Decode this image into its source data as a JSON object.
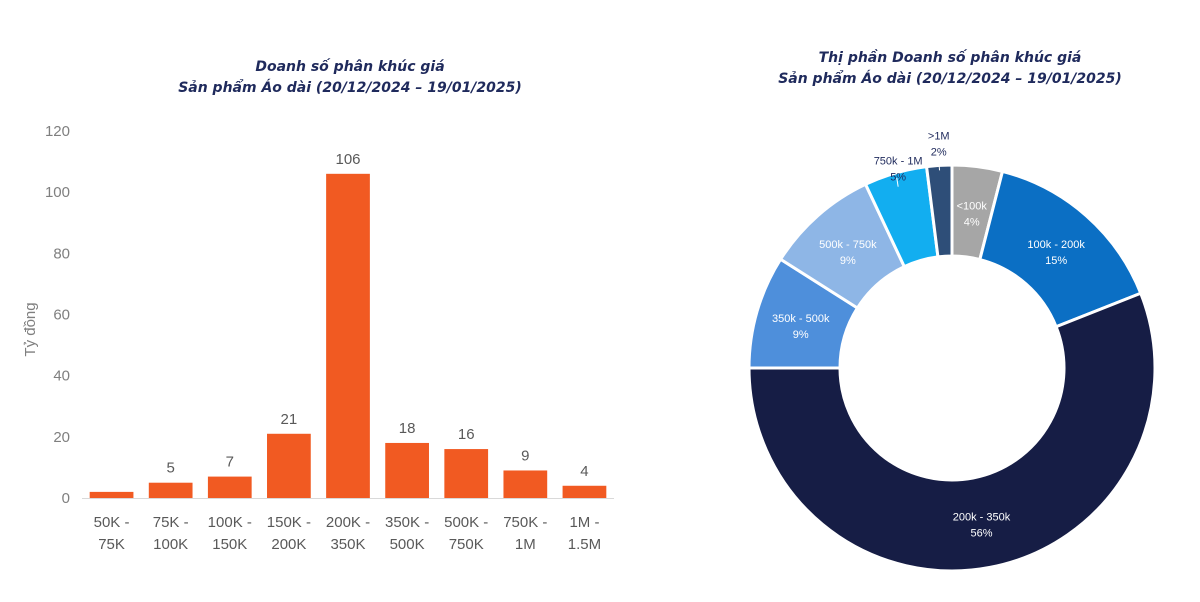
{
  "chart_data": [
    {
      "type": "bar",
      "title": "Doanh số phân khúc giá",
      "subtitle": "Sản phẩm Áo dài (20/12/2024 – 19/01/2025)",
      "ylabel": "Tỷ đồng",
      "xlabel": "",
      "ylim": [
        0,
        120
      ],
      "yticks": [
        0,
        20,
        40,
        60,
        80,
        100,
        120
      ],
      "categories": [
        [
          "50K -",
          "75K"
        ],
        [
          "75K -",
          "100K"
        ],
        [
          "100K -",
          "150K"
        ],
        [
          "150K -",
          "200K"
        ],
        [
          "200K -",
          "350K"
        ],
        [
          "350K -",
          "500K"
        ],
        [
          "500K -",
          "750K"
        ],
        [
          "750K -",
          "1M"
        ],
        [
          "1M -",
          "1.5M"
        ]
      ],
      "values": [
        2,
        5,
        7,
        21,
        106,
        18,
        16,
        9,
        4
      ],
      "data_labels": [
        "",
        "5",
        "7",
        "21",
        "106",
        "18",
        "16",
        "9",
        "4"
      ],
      "bar_color": "#f15a22",
      "grid": false,
      "legend": "none"
    },
    {
      "type": "pie",
      "style": "donut",
      "title": "Thị phần Doanh số phân khúc giá",
      "subtitle": "Sản phẩm Áo dài (20/12/2024 – 19/01/2025)",
      "slices": [
        {
          "label": "<100k",
          "value": 4,
          "pct_label": "4%",
          "color": "#a6a6a6",
          "text_color": "#ffffff"
        },
        {
          "label": "100k - 200k",
          "value": 15,
          "pct_label": "15%",
          "color": "#0b6fc4",
          "text_color": "#ffffff"
        },
        {
          "label": "200k - 350k",
          "value": 56,
          "pct_label": "56%",
          "color": "#161d45",
          "text_color": "#ffffff"
        },
        {
          "label": "350k - 500k",
          "value": 9,
          "pct_label": "9%",
          "color": "#4e8fdb",
          "text_color": "#ffffff"
        },
        {
          "label": "500k - 750k",
          "value": 9,
          "pct_label": "9%",
          "color": "#8eb6e6",
          "text_color": "#ffffff"
        },
        {
          "label": "750k - 1M",
          "value": 5,
          "pct_label": "5%",
          "color": "#12aef0",
          "text_color": "#1f2a5c"
        },
        {
          "label": ">1M",
          "value": 2,
          "pct_label": "2%",
          "color": "#2e4e78",
          "text_color": "#1f2a5c"
        }
      ],
      "legend": "none"
    }
  ]
}
